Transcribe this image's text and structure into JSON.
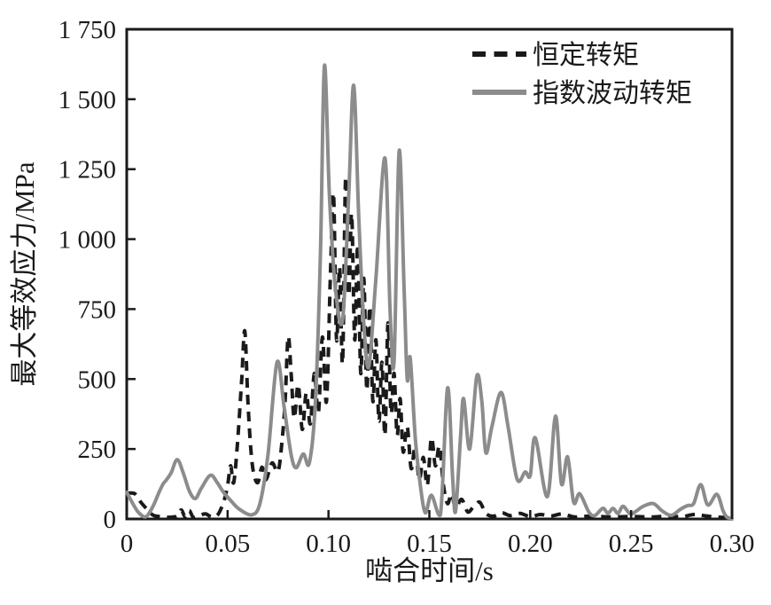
{
  "figure": {
    "background": "#ffffff",
    "border_color": "#1a1a1a"
  },
  "chart_data": {
    "type": "line",
    "title": "",
    "xlabel": "啮合时间/s",
    "ylabel": "最大等效应力/MPa",
    "xlim": [
      0,
      0.3
    ],
    "ylim": [
      0,
      1750
    ],
    "x_ticks": [
      0,
      0.05,
      0.1,
      0.15,
      0.2,
      0.25,
      0.3
    ],
    "x_tick_labels": [
      "0",
      "0.05",
      "0.10",
      "0.15",
      "0.20",
      "0.25",
      "0.30"
    ],
    "y_ticks": [
      0,
      250,
      500,
      750,
      1000,
      1250,
      1500,
      1750
    ],
    "y_tick_labels": [
      "0",
      "250",
      "500",
      "750",
      "1 000",
      "1 250",
      "1 500",
      "1 750"
    ],
    "grid": false,
    "legend_position": "top-right-inside",
    "series": [
      {
        "name": "恒定转矩",
        "style": "dashed",
        "color": "#1a1a1a",
        "width": 4,
        "dash": "11 8",
        "points": [
          [
            0.0,
            92
          ],
          [
            0.004,
            90
          ],
          [
            0.007,
            60
          ],
          [
            0.01,
            35
          ],
          [
            0.013,
            14
          ],
          [
            0.017,
            8
          ],
          [
            0.021,
            6
          ],
          [
            0.025,
            10
          ],
          [
            0.027,
            32
          ],
          [
            0.029,
            8
          ],
          [
            0.031,
            30
          ],
          [
            0.033,
            6
          ],
          [
            0.036,
            12
          ],
          [
            0.039,
            18
          ],
          [
            0.042,
            8
          ],
          [
            0.045,
            14
          ],
          [
            0.048,
            60
          ],
          [
            0.05,
            120
          ],
          [
            0.0515,
            190
          ],
          [
            0.053,
            130
          ],
          [
            0.055,
            280
          ],
          [
            0.057,
            500
          ],
          [
            0.0585,
            672
          ],
          [
            0.06,
            430
          ],
          [
            0.0615,
            250
          ],
          [
            0.063,
            160
          ],
          [
            0.065,
            130
          ],
          [
            0.067,
            185
          ],
          [
            0.069,
            140
          ],
          [
            0.072,
            200
          ],
          [
            0.075,
            170
          ],
          [
            0.077,
            280
          ],
          [
            0.0785,
            420
          ],
          [
            0.08,
            650
          ],
          [
            0.0815,
            520
          ],
          [
            0.083,
            360
          ],
          [
            0.085,
            480
          ],
          [
            0.087,
            320
          ],
          [
            0.089,
            450
          ],
          [
            0.091,
            340
          ],
          [
            0.093,
            520
          ],
          [
            0.095,
            380
          ],
          [
            0.097,
            650
          ],
          [
            0.099,
            420
          ],
          [
            0.101,
            880
          ],
          [
            0.1025,
            1160
          ],
          [
            0.104,
            640
          ],
          [
            0.1055,
            900
          ],
          [
            0.107,
            560
          ],
          [
            0.1085,
            1220
          ],
          [
            0.11,
            800
          ],
          [
            0.1115,
            1090
          ],
          [
            0.113,
            640
          ],
          [
            0.1145,
            980
          ],
          [
            0.116,
            520
          ],
          [
            0.1175,
            860
          ],
          [
            0.119,
            460
          ],
          [
            0.1205,
            760
          ],
          [
            0.122,
            420
          ],
          [
            0.1235,
            640
          ],
          [
            0.125,
            350
          ],
          [
            0.1265,
            560
          ],
          [
            0.128,
            300
          ],
          [
            0.1295,
            700
          ],
          [
            0.131,
            380
          ],
          [
            0.1325,
            520
          ],
          [
            0.134,
            300
          ],
          [
            0.1355,
            430
          ],
          [
            0.137,
            240
          ],
          [
            0.139,
            330
          ],
          [
            0.141,
            180
          ],
          [
            0.143,
            260
          ],
          [
            0.145,
            140
          ],
          [
            0.147,
            220
          ],
          [
            0.149,
            120
          ],
          [
            0.151,
            290
          ],
          [
            0.153,
            190
          ],
          [
            0.155,
            260
          ],
          [
            0.157,
            120
          ],
          [
            0.159,
            55
          ],
          [
            0.161,
            90
          ],
          [
            0.163,
            40
          ],
          [
            0.166,
            70
          ],
          [
            0.169,
            25
          ],
          [
            0.172,
            45
          ],
          [
            0.175,
            60
          ],
          [
            0.178,
            20
          ],
          [
            0.182,
            10
          ],
          [
            0.186,
            22
          ],
          [
            0.19,
            12
          ],
          [
            0.195,
            20
          ],
          [
            0.2,
            8
          ],
          [
            0.205,
            16
          ],
          [
            0.21,
            10
          ],
          [
            0.216,
            18
          ],
          [
            0.222,
            7
          ],
          [
            0.23,
            10
          ],
          [
            0.24,
            7
          ],
          [
            0.25,
            9
          ],
          [
            0.26,
            7
          ],
          [
            0.268,
            10
          ],
          [
            0.275,
            8
          ],
          [
            0.281,
            16
          ],
          [
            0.286,
            12
          ],
          [
            0.292,
            7
          ],
          [
            0.3,
            5
          ]
        ]
      },
      {
        "name": "指数波动转矩",
        "style": "solid",
        "color": "#8c8c8c",
        "width": 4,
        "dash": null,
        "points": [
          [
            0.0,
            95
          ],
          [
            0.003,
            55
          ],
          [
            0.006,
            22
          ],
          [
            0.0095,
            8
          ],
          [
            0.013,
            45
          ],
          [
            0.016,
            95
          ],
          [
            0.018,
            125
          ],
          [
            0.0195,
            138
          ],
          [
            0.022,
            165
          ],
          [
            0.025,
            212
          ],
          [
            0.028,
            165
          ],
          [
            0.031,
            100
          ],
          [
            0.034,
            73
          ],
          [
            0.037,
            110
          ],
          [
            0.0415,
            156
          ],
          [
            0.045,
            128
          ],
          [
            0.048,
            95
          ],
          [
            0.052,
            62
          ],
          [
            0.056,
            34
          ],
          [
            0.062,
            15
          ],
          [
            0.066,
            55
          ],
          [
            0.07,
            230
          ],
          [
            0.0745,
            560
          ],
          [
            0.078,
            400
          ],
          [
            0.0815,
            230
          ],
          [
            0.084,
            183
          ],
          [
            0.0875,
            232
          ],
          [
            0.0905,
            200
          ],
          [
            0.0935,
            420
          ],
          [
            0.096,
            950
          ],
          [
            0.098,
            1620
          ],
          [
            0.1005,
            1150
          ],
          [
            0.1035,
            820
          ],
          [
            0.107,
            712
          ],
          [
            0.11,
            1150
          ],
          [
            0.1125,
            1550
          ],
          [
            0.115,
            1080
          ],
          [
            0.1175,
            700
          ],
          [
            0.12,
            545
          ],
          [
            0.1235,
            860
          ],
          [
            0.128,
            1290
          ],
          [
            0.1305,
            750
          ],
          [
            0.1325,
            565
          ],
          [
            0.135,
            1315
          ],
          [
            0.1375,
            820
          ],
          [
            0.139,
            500
          ],
          [
            0.1405,
            575
          ],
          [
            0.143,
            290
          ],
          [
            0.1455,
            120
          ],
          [
            0.148,
            22
          ],
          [
            0.151,
            85
          ],
          [
            0.1555,
            15
          ],
          [
            0.159,
            468
          ],
          [
            0.1615,
            150
          ],
          [
            0.163,
            28
          ],
          [
            0.1655,
            300
          ],
          [
            0.167,
            430
          ],
          [
            0.17,
            250
          ],
          [
            0.1735,
            510
          ],
          [
            0.176,
            420
          ],
          [
            0.178,
            237
          ],
          [
            0.181,
            330
          ],
          [
            0.1855,
            452
          ],
          [
            0.189,
            330
          ],
          [
            0.1935,
            142
          ],
          [
            0.1975,
            168
          ],
          [
            0.2,
            155
          ],
          [
            0.2025,
            290
          ],
          [
            0.2085,
            80
          ],
          [
            0.2125,
            367
          ],
          [
            0.2155,
            125
          ],
          [
            0.2185,
            222
          ],
          [
            0.2215,
            60
          ],
          [
            0.2245,
            90
          ],
          [
            0.229,
            25
          ],
          [
            0.232,
            12
          ],
          [
            0.236,
            38
          ],
          [
            0.2385,
            20
          ],
          [
            0.241,
            38
          ],
          [
            0.2435,
            20
          ],
          [
            0.246,
            45
          ],
          [
            0.2495,
            18
          ],
          [
            0.2525,
            28
          ],
          [
            0.256,
            45
          ],
          [
            0.261,
            55
          ],
          [
            0.2655,
            28
          ],
          [
            0.27,
            13
          ],
          [
            0.2745,
            35
          ],
          [
            0.278,
            48
          ],
          [
            0.281,
            55
          ],
          [
            0.2845,
            123
          ],
          [
            0.288,
            50
          ],
          [
            0.2925,
            88
          ],
          [
            0.2955,
            30
          ],
          [
            0.2975,
            6
          ],
          [
            0.3,
            3
          ]
        ]
      }
    ]
  }
}
